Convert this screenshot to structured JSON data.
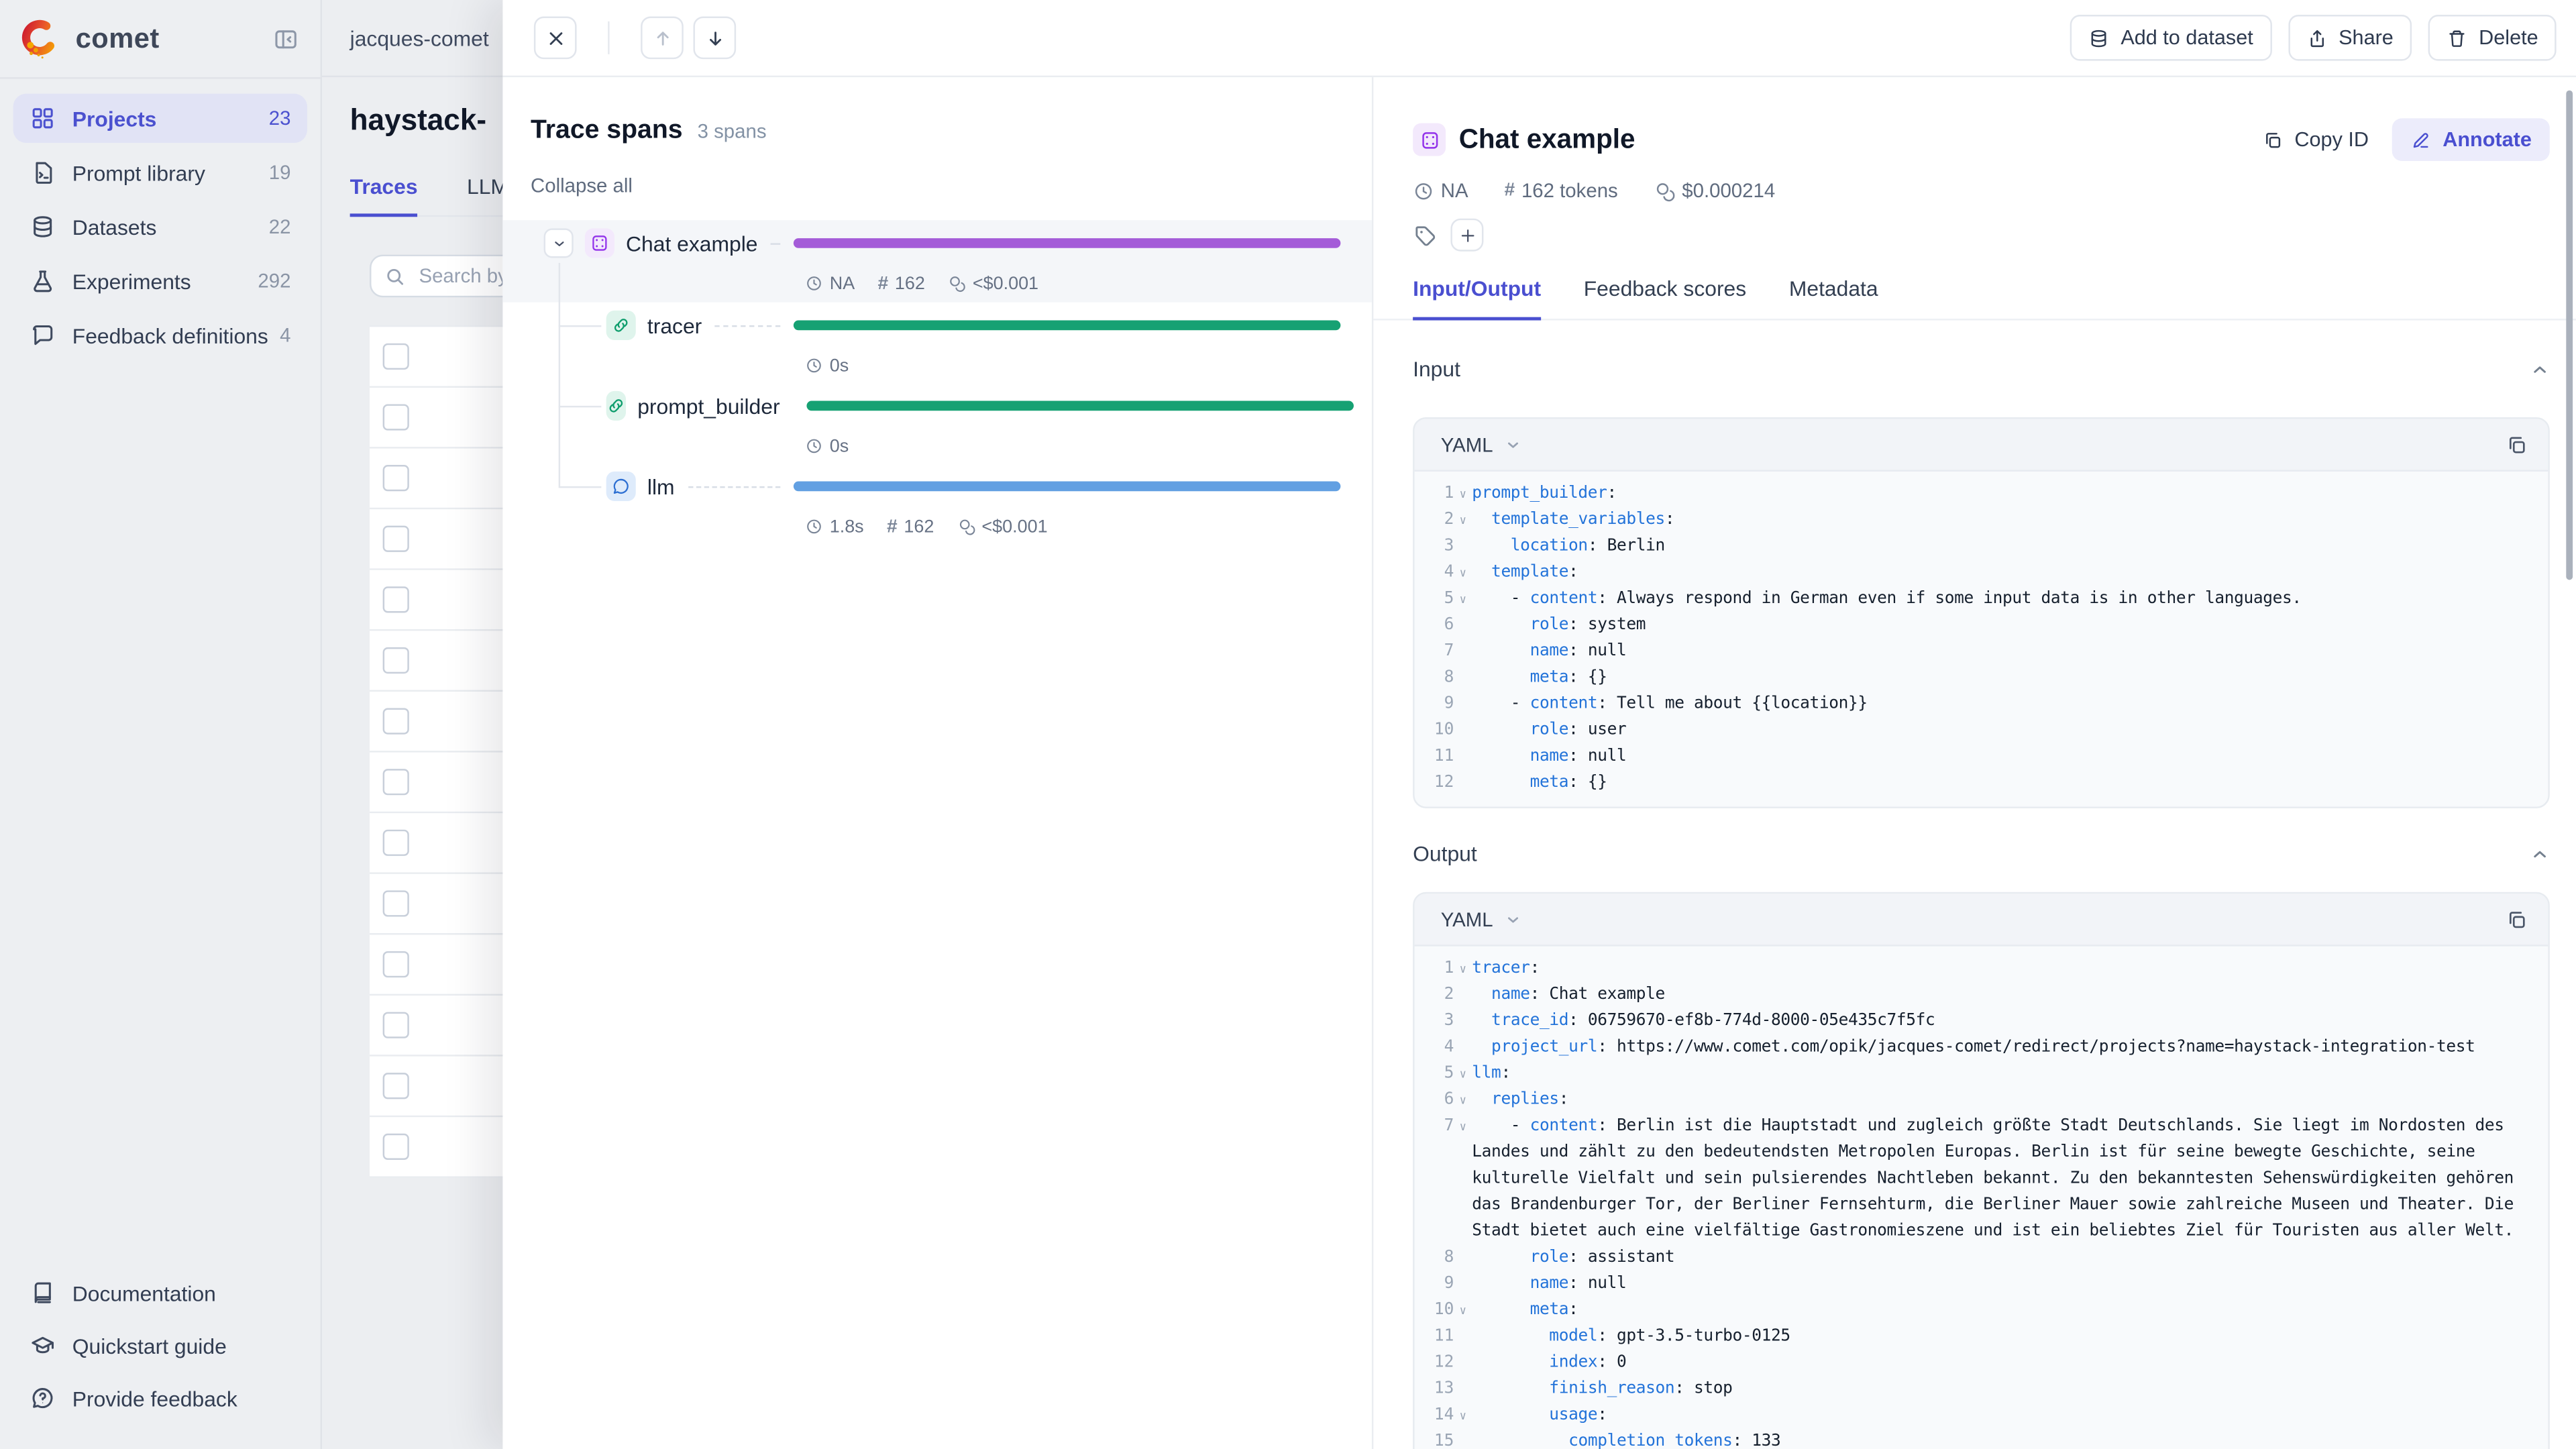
{
  "sidebar": {
    "logo_text": "comet",
    "items": [
      {
        "label": "Projects",
        "count": "23",
        "icon": "grid",
        "active": true
      },
      {
        "label": "Prompt library",
        "count": "19",
        "icon": "prompt",
        "active": false
      },
      {
        "label": "Datasets",
        "count": "22",
        "icon": "database",
        "active": false
      },
      {
        "label": "Experiments",
        "count": "292",
        "icon": "flask",
        "active": false
      },
      {
        "label": "Feedback definitions",
        "count": "4",
        "icon": "bubble",
        "active": false
      }
    ],
    "footer_items": [
      {
        "label": "Documentation",
        "icon": "book"
      },
      {
        "label": "Quickstart guide",
        "icon": "cap"
      },
      {
        "label": "Provide feedback",
        "icon": "help"
      }
    ]
  },
  "topbar": {
    "breadcrumb": "jacques-comet",
    "actions": [
      {
        "label": "Add to dataset",
        "icon": "database"
      },
      {
        "label": "Share",
        "icon": "share"
      },
      {
        "label": "Delete",
        "icon": "trash"
      }
    ]
  },
  "page": {
    "title": "haystack-",
    "tabs": [
      {
        "label": "Traces",
        "active": true
      },
      {
        "label": "LLM",
        "active": false
      }
    ],
    "search_placeholder": "Search by",
    "table": {
      "row_count": 14
    }
  },
  "trace_spans": {
    "title": "Trace spans",
    "count_label": "3 spans",
    "collapse_all": "Collapse all",
    "rows": [
      {
        "name": "Chat example",
        "icon": "trace",
        "icon_color": "#9333ea",
        "icon_bg": "#f3e9fc",
        "bar_color": "#a45cd8",
        "duration": "NA",
        "tokens": "162",
        "cost": "<$0.001",
        "selected": true,
        "expandable": true
      },
      {
        "name": "tracer",
        "icon": "link",
        "icon_color": "#0d9d6c",
        "icon_bg": "#dff4ec",
        "bar_color": "#16a173",
        "duration": "0s",
        "selected": false
      },
      {
        "name": "prompt_builder",
        "icon": "link",
        "icon_color": "#0d9d6c",
        "icon_bg": "#dff4ec",
        "bar_color": "#16a173",
        "duration": "0s",
        "selected": false
      },
      {
        "name": "llm",
        "icon": "chat",
        "icon_color": "#2d6fd2",
        "icon_bg": "#deebfb",
        "bar_color": "#62a0e2",
        "duration": "1.8s",
        "tokens": "162",
        "cost": "<$0.001",
        "selected": false
      }
    ]
  },
  "detail": {
    "title": "Chat example",
    "copy_id_label": "Copy ID",
    "annotate_label": "Annotate",
    "stats": {
      "duration": "NA",
      "tokens": "162 tokens",
      "cost": "$0.000214"
    },
    "tabs": [
      {
        "label": "Input/Output",
        "active": true
      },
      {
        "label": "Feedback scores",
        "active": false
      },
      {
        "label": "Metadata",
        "active": false
      }
    ],
    "input": {
      "label": "Input",
      "format": "YAML",
      "lines": [
        {
          "n": 1,
          "fold": true,
          "seg": [
            {
              "t": "prompt_builder",
              "k": true
            },
            {
              "t": ":"
            }
          ]
        },
        {
          "n": 2,
          "fold": true,
          "seg": [
            {
              "t": "  "
            },
            {
              "t": "template_variables",
              "k": true
            },
            {
              "t": ":"
            }
          ]
        },
        {
          "n": 3,
          "fold": false,
          "seg": [
            {
              "t": "    "
            },
            {
              "t": "location",
              "k": true
            },
            {
              "t": ": Berlin"
            }
          ]
        },
        {
          "n": 4,
          "fold": true,
          "seg": [
            {
              "t": "  "
            },
            {
              "t": "template",
              "k": true
            },
            {
              "t": ":"
            }
          ]
        },
        {
          "n": 5,
          "fold": true,
          "seg": [
            {
              "t": "    - "
            },
            {
              "t": "content",
              "k": true
            },
            {
              "t": ": Always respond in German even if some input data is in other languages."
            }
          ]
        },
        {
          "n": 6,
          "fold": false,
          "seg": [
            {
              "t": "      "
            },
            {
              "t": "role",
              "k": true
            },
            {
              "t": ": system"
            }
          ]
        },
        {
          "n": 7,
          "fold": false,
          "seg": [
            {
              "t": "      "
            },
            {
              "t": "name",
              "k": true
            },
            {
              "t": ": null"
            }
          ]
        },
        {
          "n": 8,
          "fold": false,
          "seg": [
            {
              "t": "      "
            },
            {
              "t": "meta",
              "k": true
            },
            {
              "t": ": {}"
            }
          ]
        },
        {
          "n": 9,
          "fold": false,
          "seg": [
            {
              "t": "    - "
            },
            {
              "t": "content",
              "k": true
            },
            {
              "t": ": Tell me about {{location}}"
            }
          ]
        },
        {
          "n": 10,
          "fold": false,
          "seg": [
            {
              "t": "      "
            },
            {
              "t": "role",
              "k": true
            },
            {
              "t": ": user"
            }
          ]
        },
        {
          "n": 11,
          "fold": false,
          "seg": [
            {
              "t": "      "
            },
            {
              "t": "name",
              "k": true
            },
            {
              "t": ": null"
            }
          ]
        },
        {
          "n": 12,
          "fold": false,
          "seg": [
            {
              "t": "      "
            },
            {
              "t": "meta",
              "k": true
            },
            {
              "t": ": {}"
            }
          ]
        }
      ]
    },
    "output": {
      "label": "Output",
      "format": "YAML",
      "lines": [
        {
          "n": 1,
          "fold": true,
          "seg": [
            {
              "t": "tracer",
              "k": true
            },
            {
              "t": ":"
            }
          ]
        },
        {
          "n": 2,
          "fold": false,
          "seg": [
            {
              "t": "  "
            },
            {
              "t": "name",
              "k": true
            },
            {
              "t": ": Chat example"
            }
          ]
        },
        {
          "n": 3,
          "fold": false,
          "seg": [
            {
              "t": "  "
            },
            {
              "t": "trace_id",
              "k": true
            },
            {
              "t": ": 06759670-ef8b-774d-8000-05e435c7f5fc"
            }
          ]
        },
        {
          "n": 4,
          "fold": false,
          "seg": [
            {
              "t": "  "
            },
            {
              "t": "project_url",
              "k": true
            },
            {
              "t": ": https://www.comet.com/opik/jacques-comet/redirect/projects?name=haystack-integration-test"
            }
          ]
        },
        {
          "n": 5,
          "fold": true,
          "seg": [
            {
              "t": "llm",
              "k": true
            },
            {
              "t": ":"
            }
          ]
        },
        {
          "n": 6,
          "fold": true,
          "seg": [
            {
              "t": "  "
            },
            {
              "t": "replies",
              "k": true
            },
            {
              "t": ":"
            }
          ]
        },
        {
          "n": 7,
          "fold": true,
          "seg": [
            {
              "t": "    - "
            },
            {
              "t": "content",
              "k": true
            },
            {
              "t": ": Berlin ist die Hauptstadt und zugleich größte Stadt Deutschlands. Sie liegt im Nordosten des Landes und zählt zu den bedeutendsten Metropolen Europas. Berlin ist für seine bewegte Geschichte, seine kulturelle Vielfalt und sein pulsierendes Nachtleben bekannt. Zu den bekanntesten Sehenswürdigkeiten gehören das Brandenburger Tor, der Berliner Fernsehturm, die Berliner Mauer sowie zahlreiche Museen und Theater. Die Stadt bietet auch eine vielfältige Gastronomieszene und ist ein beliebtes Ziel für Touristen aus aller Welt."
            }
          ]
        },
        {
          "n": 8,
          "fold": false,
          "seg": [
            {
              "t": "      "
            },
            {
              "t": "role",
              "k": true
            },
            {
              "t": ": assistant"
            }
          ]
        },
        {
          "n": 9,
          "fold": false,
          "seg": [
            {
              "t": "      "
            },
            {
              "t": "name",
              "k": true
            },
            {
              "t": ": null"
            }
          ]
        },
        {
          "n": 10,
          "fold": true,
          "seg": [
            {
              "t": "      "
            },
            {
              "t": "meta",
              "k": true
            },
            {
              "t": ":"
            }
          ]
        },
        {
          "n": 11,
          "fold": false,
          "seg": [
            {
              "t": "        "
            },
            {
              "t": "model",
              "k": true
            },
            {
              "t": ": gpt-3.5-turbo-0125"
            }
          ]
        },
        {
          "n": 12,
          "fold": false,
          "seg": [
            {
              "t": "        "
            },
            {
              "t": "index",
              "k": true
            },
            {
              "t": ": 0"
            }
          ]
        },
        {
          "n": 13,
          "fold": false,
          "seg": [
            {
              "t": "        "
            },
            {
              "t": "finish_reason",
              "k": true
            },
            {
              "t": ": stop"
            }
          ]
        },
        {
          "n": 14,
          "fold": true,
          "seg": [
            {
              "t": "        "
            },
            {
              "t": "usage",
              "k": true
            },
            {
              "t": ":"
            }
          ]
        },
        {
          "n": 15,
          "fold": false,
          "seg": [
            {
              "t": "          "
            },
            {
              "t": "completion_tokens",
              "k": true
            },
            {
              "t": ": 133"
            }
          ]
        }
      ]
    }
  },
  "colors": {
    "accent": "#4a4fd0",
    "trace_bar": "#a45cd8",
    "tool_bar": "#16a173",
    "llm_bar": "#62a0e2",
    "yaml_key": "#2373d9"
  }
}
